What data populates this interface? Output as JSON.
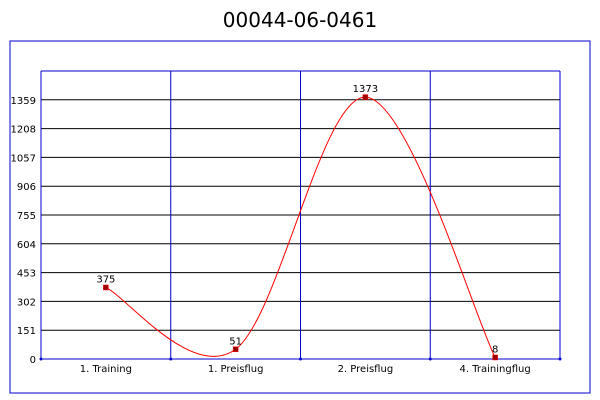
{
  "chart_data": {
    "type": "line",
    "title": "00044-06-0461",
    "categories": [
      "1. Training",
      "1. Preisflug",
      "2. Preisflug",
      "4. Trainingflug"
    ],
    "values": [
      375,
      51,
      1373,
      8
    ],
    "data_labels": [
      "375",
      "51",
      "1373",
      "8"
    ],
    "y_ticks": [
      0,
      151,
      302,
      453,
      604,
      755,
      906,
      1057,
      1208,
      1359
    ],
    "y_tick_labels": [
      "0",
      "151",
      "302",
      "453",
      "604",
      "755",
      "906",
      "1057",
      "1208",
      "1359"
    ],
    "ylim": [
      0,
      1510
    ],
    "xlabel": "",
    "ylabel": "",
    "grid": true,
    "smooth": true,
    "colors": {
      "line": "#ff0000",
      "marker_fill": "#990000",
      "grid": "#000000",
      "axis_frame": "#0000cc",
      "outer_frame": "#0000cc"
    }
  }
}
